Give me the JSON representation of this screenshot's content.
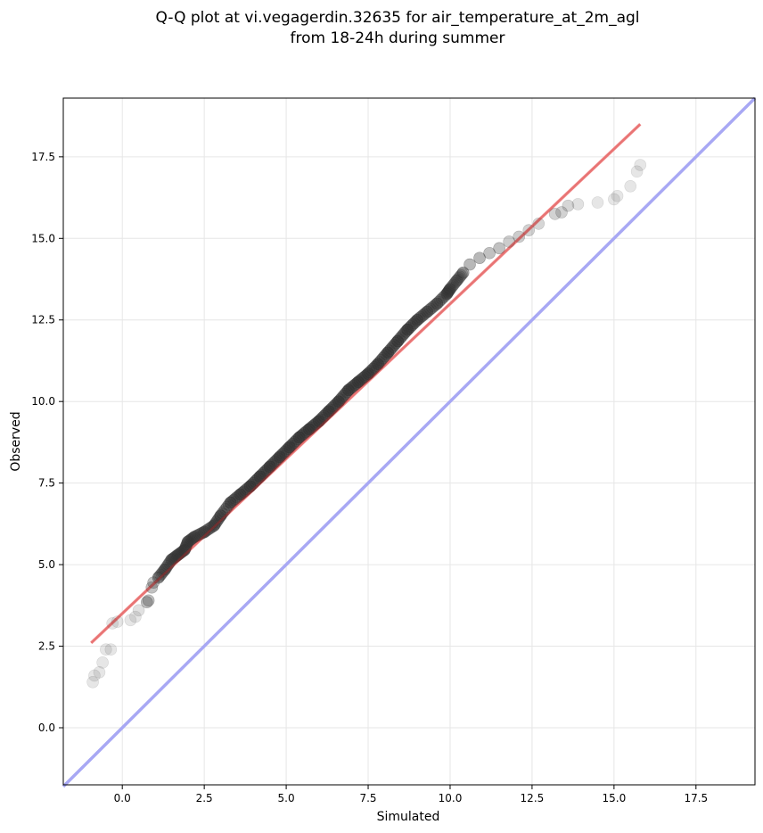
{
  "chart_data": {
    "type": "scatter",
    "title": [
      "Q-Q plot at vi.vegagerdin.32635 for air_temperature_at_2m_agl",
      "from 18-24h during summer"
    ],
    "xlabel": "Simulated",
    "ylabel": "Observed",
    "xlim": [
      -1.8,
      19.3
    ],
    "ylim": [
      -1.75,
      19.3
    ],
    "x_ticks": [
      "0.0",
      "2.5",
      "5.0",
      "7.5",
      "10.0",
      "12.5",
      "15.0",
      "17.5"
    ],
    "y_ticks": [
      "0.0",
      "2.5",
      "5.0",
      "7.5",
      "10.0",
      "12.5",
      "15.0",
      "17.5"
    ],
    "grid": true,
    "series": [
      {
        "role": "quantile-points",
        "color": "#333333",
        "x": [
          -0.9,
          -0.85,
          -0.7,
          -0.6,
          -0.5,
          -0.35,
          -0.3,
          -0.15,
          0.25,
          0.4,
          0.5,
          0.75,
          0.8,
          0.9,
          0.95,
          1.1,
          1.3,
          1.5,
          1.7,
          1.9,
          2.0,
          2.2,
          2.5,
          2.8,
          3.0,
          3.3,
          3.6,
          3.9,
          4.2,
          4.5,
          4.8,
          5.1,
          5.4,
          5.7,
          6.0,
          6.3,
          6.6,
          6.9,
          7.2,
          7.5,
          7.8,
          8.1,
          8.4,
          8.7,
          9.0,
          9.3,
          9.6,
          9.9,
          10.0,
          10.2,
          10.4,
          10.6,
          10.9,
          11.2,
          11.5,
          11.8,
          12.1,
          12.4,
          12.7,
          13.2,
          13.4,
          13.6,
          13.9,
          14.5,
          15.0,
          15.1,
          15.5,
          15.7,
          15.8
        ],
        "y": [
          1.4,
          1.6,
          1.7,
          2.0,
          2.4,
          2.4,
          3.2,
          3.25,
          3.3,
          3.4,
          3.6,
          3.85,
          3.9,
          4.3,
          4.45,
          4.6,
          4.85,
          5.15,
          5.3,
          5.45,
          5.7,
          5.85,
          6.0,
          6.2,
          6.5,
          6.9,
          7.15,
          7.4,
          7.7,
          8.0,
          8.3,
          8.6,
          8.9,
          9.15,
          9.4,
          9.7,
          10.0,
          10.35,
          10.6,
          10.85,
          11.15,
          11.5,
          11.85,
          12.2,
          12.5,
          12.75,
          13.0,
          13.3,
          13.45,
          13.7,
          13.95,
          14.2,
          14.4,
          14.55,
          14.7,
          14.9,
          15.05,
          15.25,
          15.45,
          15.75,
          15.8,
          16.0,
          16.05,
          16.1,
          16.2,
          16.3,
          16.6,
          17.05,
          17.25
        ],
        "opacity": [
          0.12,
          0.12,
          0.12,
          0.12,
          0.12,
          0.12,
          0.12,
          0.12,
          0.12,
          0.12,
          0.15,
          0.3,
          0.3,
          0.3,
          0.3,
          0.45,
          0.5,
          0.5,
          0.5,
          0.5,
          0.5,
          0.55,
          0.55,
          0.55,
          0.6,
          0.6,
          0.65,
          0.7,
          0.7,
          0.7,
          0.7,
          0.7,
          0.7,
          0.7,
          0.7,
          0.7,
          0.7,
          0.7,
          0.7,
          0.7,
          0.7,
          0.7,
          0.7,
          0.7,
          0.6,
          0.55,
          0.55,
          0.5,
          0.45,
          0.45,
          0.4,
          0.35,
          0.35,
          0.3,
          0.3,
          0.25,
          0.25,
          0.22,
          0.2,
          0.22,
          0.22,
          0.2,
          0.15,
          0.12,
          0.12,
          0.12,
          0.12,
          0.12,
          0.12
        ]
      }
    ],
    "fit_line": {
      "x": [
        -0.95,
        15.8
      ],
      "y": [
        2.6,
        18.5
      ],
      "color": "#f8a0a0"
    },
    "identity_line": {
      "x": [
        -1.8,
        19.3
      ],
      "y": [
        -1.8,
        19.3
      ],
      "color": "#a8a8f4"
    }
  }
}
